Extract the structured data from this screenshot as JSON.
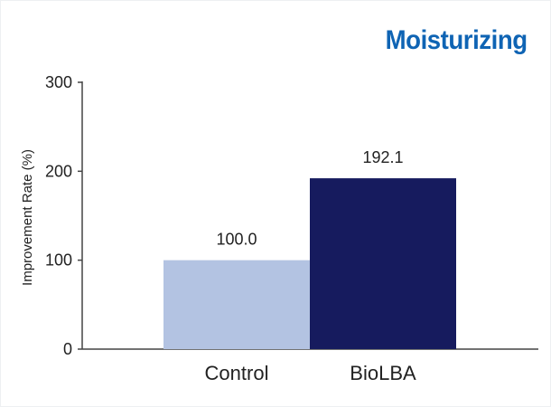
{
  "chart_data": {
    "type": "bar",
    "title": "Moisturizing",
    "ylabel": "Improvement Rate (%)",
    "xlabel": "",
    "categories": [
      "Control",
      "BioLBA"
    ],
    "values": [
      100.0,
      192.1
    ],
    "value_labels": [
      "100.0",
      "192.1"
    ],
    "colors": [
      "#b3c3e2",
      "#161b5e"
    ],
    "title_color": "#0f64b4",
    "ylim": [
      0,
      300
    ],
    "yticks": [
      0,
      100,
      200,
      300
    ],
    "ytick_labels": [
      "0",
      "100",
      "200",
      "300"
    ],
    "grid": false,
    "legend": "none"
  }
}
